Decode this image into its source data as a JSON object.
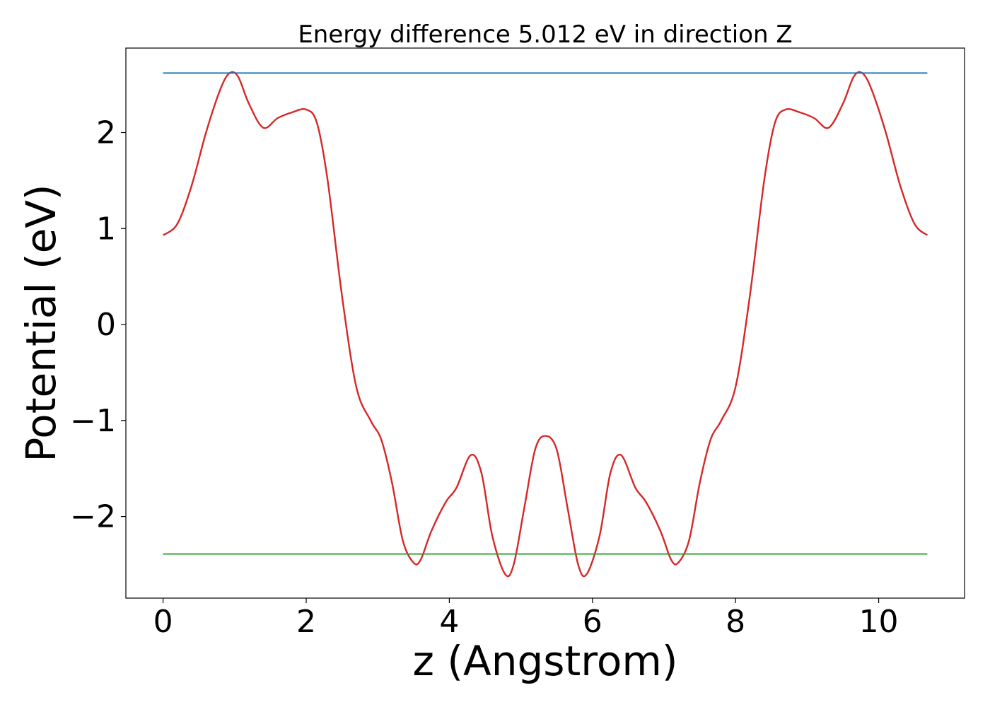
{
  "chart_data": {
    "type": "line",
    "title": "Energy difference 5.012 eV in direction Z",
    "xlabel": "z (Angstrom)",
    "ylabel": "Potential (eV)",
    "xlim": [
      -0.52,
      11.2
    ],
    "ylim": [
      -2.85,
      2.88
    ],
    "xticks": [
      0,
      2,
      4,
      6,
      8,
      10
    ],
    "xtick_labels": [
      "0",
      "2",
      "4",
      "6",
      "8",
      "10"
    ],
    "yticks": [
      -2,
      -1,
      0,
      1,
      2
    ],
    "ytick_labels": [
      "−2",
      "−1",
      "0",
      "1",
      "2"
    ],
    "grid": false,
    "series": [
      {
        "color": "#d62728",
        "points": [
          [
            0.0,
            0.93
          ],
          [
            0.2,
            1.05
          ],
          [
            0.4,
            1.45
          ],
          [
            0.6,
            2.0
          ],
          [
            0.8,
            2.45
          ],
          [
            0.93,
            2.62
          ],
          [
            1.05,
            2.58
          ],
          [
            1.2,
            2.3
          ],
          [
            1.4,
            2.05
          ],
          [
            1.6,
            2.15
          ],
          [
            1.8,
            2.21
          ],
          [
            2.0,
            2.24
          ],
          [
            2.15,
            2.1
          ],
          [
            2.3,
            1.5
          ],
          [
            2.5,
            0.3
          ],
          [
            2.7,
            -0.65
          ],
          [
            2.9,
            -1.0
          ],
          [
            3.05,
            -1.2
          ],
          [
            3.2,
            -1.65
          ],
          [
            3.35,
            -2.25
          ],
          [
            3.5,
            -2.48
          ],
          [
            3.6,
            -2.45
          ],
          [
            3.75,
            -2.15
          ],
          [
            3.95,
            -1.85
          ],
          [
            4.1,
            -1.7
          ],
          [
            4.3,
            -1.36
          ],
          [
            4.45,
            -1.55
          ],
          [
            4.6,
            -2.2
          ],
          [
            4.78,
            -2.6
          ],
          [
            4.9,
            -2.5
          ],
          [
            5.05,
            -1.9
          ],
          [
            5.2,
            -1.3
          ],
          [
            5.34,
            -1.16
          ],
          [
            5.5,
            -1.3
          ],
          [
            5.65,
            -1.9
          ],
          [
            5.8,
            -2.5
          ],
          [
            5.92,
            -2.6
          ],
          [
            6.1,
            -2.2
          ],
          [
            6.25,
            -1.55
          ],
          [
            6.4,
            -1.36
          ],
          [
            6.6,
            -1.7
          ],
          [
            6.75,
            -1.85
          ],
          [
            6.95,
            -2.15
          ],
          [
            7.1,
            -2.45
          ],
          [
            7.2,
            -2.48
          ],
          [
            7.35,
            -2.25
          ],
          [
            7.5,
            -1.65
          ],
          [
            7.65,
            -1.2
          ],
          [
            7.8,
            -1.0
          ],
          [
            8.0,
            -0.65
          ],
          [
            8.2,
            0.3
          ],
          [
            8.4,
            1.5
          ],
          [
            8.55,
            2.1
          ],
          [
            8.7,
            2.24
          ],
          [
            8.9,
            2.21
          ],
          [
            9.1,
            2.15
          ],
          [
            9.3,
            2.05
          ],
          [
            9.5,
            2.3
          ],
          [
            9.65,
            2.58
          ],
          [
            9.77,
            2.62
          ],
          [
            9.9,
            2.45
          ],
          [
            10.1,
            2.0
          ],
          [
            10.3,
            1.45
          ],
          [
            10.5,
            1.05
          ],
          [
            10.68,
            0.93
          ]
        ]
      },
      {
        "color": "#1f77b4",
        "points": [
          [
            0.0,
            2.62
          ],
          [
            10.68,
            2.62
          ]
        ]
      },
      {
        "color": "#2ca02c",
        "points": [
          [
            0.0,
            -2.39
          ],
          [
            10.68,
            -2.39
          ]
        ]
      }
    ]
  }
}
